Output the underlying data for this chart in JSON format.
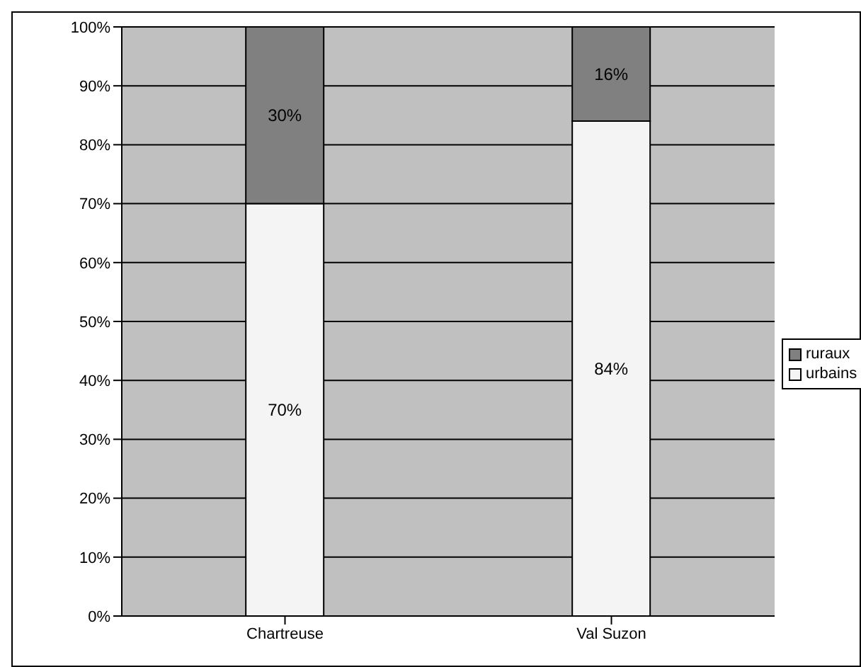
{
  "chart_data": {
    "type": "bar",
    "stacked": true,
    "categories": [
      "Chartreuse",
      "Val Suzon"
    ],
    "series": [
      {
        "name": "urbains",
        "color": "#f4f4f4",
        "values": [
          70,
          84
        ],
        "value_labels": [
          "70%",
          "84%"
        ]
      },
      {
        "name": "ruraux",
        "color": "#808080",
        "values": [
          30,
          16
        ],
        "value_labels": [
          "30%",
          "16%"
        ]
      }
    ],
    "ylim": [
      0,
      100
    ],
    "yticks": [
      {
        "value": 0,
        "label": "0%"
      },
      {
        "value": 10,
        "label": "10%"
      },
      {
        "value": 20,
        "label": "20%"
      },
      {
        "value": 30,
        "label": "30%"
      },
      {
        "value": 40,
        "label": "40%"
      },
      {
        "value": 50,
        "label": "50%"
      },
      {
        "value": 60,
        "label": "60%"
      },
      {
        "value": 70,
        "label": "70%"
      },
      {
        "value": 80,
        "label": "80%"
      },
      {
        "value": 90,
        "label": "90%"
      },
      {
        "value": 100,
        "label": "100%"
      }
    ],
    "grid": "y",
    "legend": "right"
  }
}
